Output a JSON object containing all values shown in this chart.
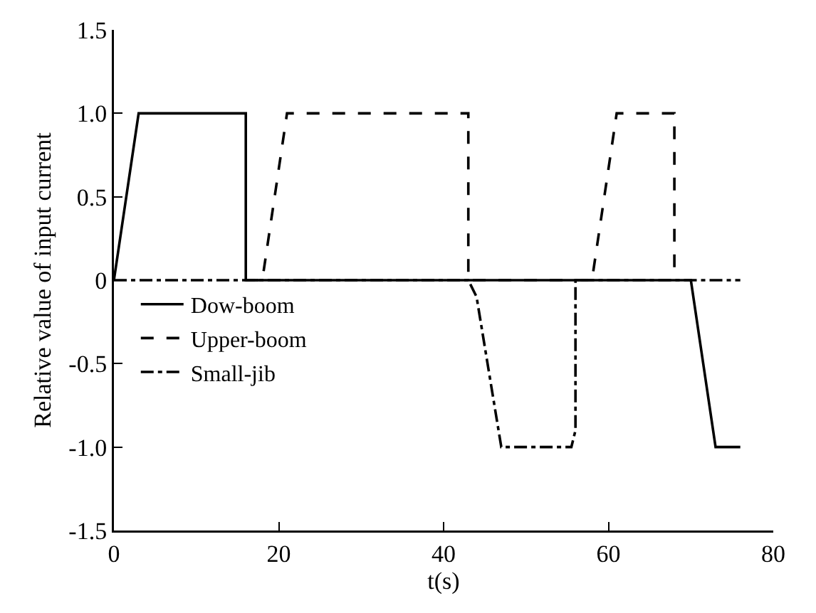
{
  "chart_data": {
    "type": "line",
    "xlabel": "t(s)",
    "ylabel": "Relative value of input current",
    "xlim": [
      0,
      80
    ],
    "xticks": [
      0,
      20,
      40,
      60,
      80
    ],
    "ylim": [
      -1.5,
      1.5
    ],
    "yticks": [
      {
        "value": -1.5,
        "label": "-1.5"
      },
      {
        "value": -1,
        "label": "-1.0"
      },
      {
        "value": -0.5,
        "label": "-0.5"
      },
      0,
      {
        "value": 0.5,
        "label": "0.5"
      },
      {
        "value": 1,
        "label": "1.0"
      },
      {
        "value": 1.5,
        "label": "1.5"
      }
    ],
    "grid": false,
    "legend": "left",
    "marker": "none",
    "series": [
      {
        "name": "Dow-boom",
        "color": "#000000",
        "line_style": "solid",
        "x": [
          0,
          3,
          16,
          16,
          70,
          73,
          76
        ],
        "values": [
          0,
          1,
          1,
          0,
          0,
          -1,
          -1
        ]
      },
      {
        "name": "Upper-boom",
        "color": "#000000",
        "line_style": "dashed",
        "x": [
          16,
          18,
          21,
          43,
          43,
          58,
          61,
          68,
          68
        ],
        "values": [
          0,
          0,
          1,
          1,
          0,
          0,
          1,
          1,
          0
        ]
      },
      {
        "name": "Small-jib",
        "color": "#000000",
        "line_style": "dashdot",
        "x": [
          0,
          43,
          44,
          47,
          55.5,
          56,
          56,
          76
        ],
        "values": [
          0,
          0,
          -0.1,
          -1,
          -1,
          -0.9,
          0,
          0
        ]
      }
    ]
  }
}
